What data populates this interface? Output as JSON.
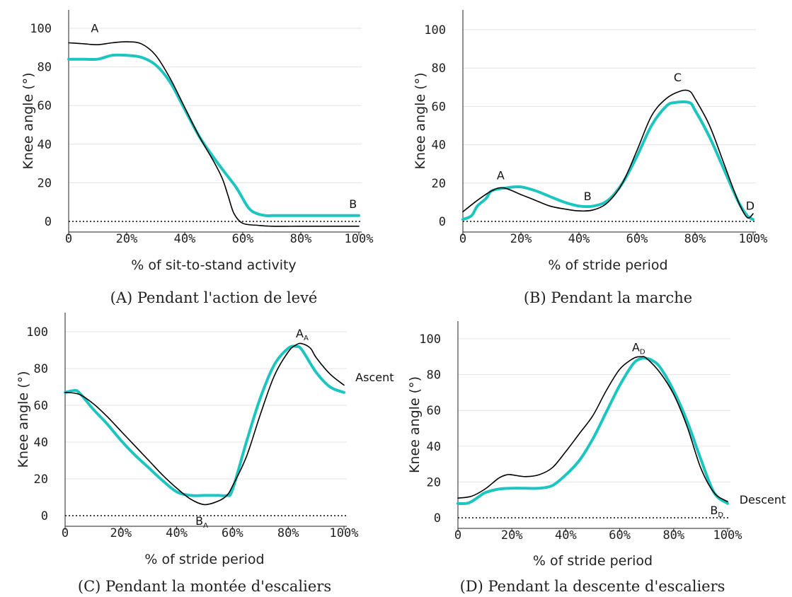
{
  "colors": {
    "measured": "#000000",
    "estimated": "#1cc5c0"
  },
  "chart_data": [
    {
      "type": "line",
      "caption": "(A) Pendant l'action de levé",
      "xlabel": "% of sit-to-stand activity",
      "ylabel": "Knee angle (°)",
      "xlim": [
        0,
        100
      ],
      "ylim": [
        -5,
        110
      ],
      "x_ticks": [
        "0",
        "20%",
        "40%",
        "60%",
        "80%",
        "100%"
      ],
      "y_ticks": [
        "0",
        "20",
        "40",
        "60",
        "80",
        "100"
      ],
      "grid": true,
      "series": [
        {
          "x": [
            0,
            5,
            10,
            15,
            20,
            25,
            30,
            35,
            40,
            45,
            50,
            53,
            55,
            57,
            60,
            65,
            70,
            80,
            90,
            100
          ],
          "y": [
            92.5,
            92,
            91.5,
            92.5,
            93,
            92,
            86,
            74,
            59,
            44,
            31,
            22,
            13,
            4,
            -1,
            -2,
            -2.5,
            -2.5,
            -2.5,
            -2.5
          ]
        },
        {
          "x": [
            0,
            5,
            10,
            15,
            20,
            25,
            30,
            35,
            40,
            45,
            50,
            55,
            58,
            62,
            65,
            68,
            70,
            80,
            90,
            100
          ],
          "y": [
            84,
            84,
            84,
            86,
            86,
            85,
            81,
            72,
            58,
            44,
            33,
            23,
            17,
            7,
            4,
            3,
            3,
            3,
            3,
            3
          ]
        }
      ],
      "annotations": [
        {
          "text": "A",
          "sub": "",
          "x": 9,
          "y": 98
        },
        {
          "text": "B",
          "sub": "",
          "x": 98,
          "y": 7
        }
      ]
    },
    {
      "type": "line",
      "caption": "(B) Pendant la marche",
      "xlabel": "% of stride period",
      "ylabel": "Knee angle (°)",
      "xlim": [
        0,
        100
      ],
      "ylim": [
        -5,
        110
      ],
      "x_ticks": [
        "0",
        "20%",
        "40%",
        "60%",
        "80%",
        "100%"
      ],
      "y_ticks": [
        "0",
        "20",
        "40",
        "60",
        "80",
        "100"
      ],
      "grid": true,
      "series": [
        {
          "x": [
            0,
            5,
            10,
            14,
            20,
            25,
            30,
            35,
            40,
            45,
            50,
            55,
            60,
            65,
            70,
            75,
            78,
            80,
            85,
            90,
            95,
            98,
            100
          ],
          "y": [
            5,
            11,
            16,
            17.5,
            14,
            11,
            8,
            6.5,
            5.5,
            6,
            10,
            20,
            37,
            55,
            64,
            68,
            68,
            64,
            50,
            30,
            10,
            2,
            4
          ]
        },
        {
          "x": [
            0,
            3,
            5,
            8,
            10,
            15,
            20,
            25,
            30,
            35,
            40,
            45,
            50,
            55,
            60,
            65,
            70,
            73,
            78,
            80,
            85,
            90,
            95,
            98,
            100
          ],
          "y": [
            1,
            3,
            8,
            12,
            16,
            17.5,
            18,
            16,
            13,
            10,
            8,
            8,
            11,
            20,
            34,
            50,
            60,
            62,
            62,
            58,
            44,
            27,
            10,
            3,
            1
          ]
        }
      ],
      "annotations": [
        {
          "text": "A",
          "sub": "",
          "x": 13,
          "y": 22
        },
        {
          "text": "B",
          "sub": "",
          "x": 43,
          "y": 11
        },
        {
          "text": "C",
          "sub": "",
          "x": 74,
          "y": 73
        },
        {
          "text": "D",
          "sub": "",
          "x": 99,
          "y": 6
        }
      ]
    },
    {
      "type": "line",
      "caption": "(C) Pendant la montée d'escaliers",
      "xlabel": "% of stride period",
      "ylabel": "Knee angle (°)",
      "xlim": [
        0,
        100
      ],
      "ylim": [
        -5,
        110
      ],
      "x_ticks": [
        "0",
        "20%",
        "40%",
        "60%",
        "80%",
        "100%"
      ],
      "y_ticks": [
        "0",
        "20",
        "40",
        "60",
        "80",
        "100"
      ],
      "grid": true,
      "series": [
        {
          "x": [
            0,
            5,
            10,
            15,
            20,
            25,
            30,
            35,
            40,
            45,
            50,
            55,
            58,
            60,
            65,
            70,
            75,
            80,
            83,
            85,
            88,
            90,
            95,
            100
          ],
          "y": [
            67,
            66,
            61,
            54,
            46,
            38,
            30,
            22,
            15,
            9,
            6,
            8,
            11,
            16,
            32,
            55,
            76,
            89,
            93,
            93.5,
            91,
            86,
            77,
            71
          ]
        },
        {
          "x": [
            0,
            3,
            5,
            10,
            15,
            20,
            25,
            30,
            35,
            40,
            45,
            50,
            55,
            58,
            60,
            65,
            70,
            75,
            80,
            83,
            85,
            90,
            95,
            100
          ],
          "y": [
            67,
            68,
            67,
            58,
            50,
            41,
            33,
            26,
            19,
            13,
            11,
            11,
            11,
            11,
            14,
            40,
            64,
            82,
            91,
            92,
            90,
            78,
            70,
            67
          ]
        }
      ],
      "annotations": [
        {
          "text": "A",
          "sub": "A",
          "x": 85,
          "y": 97
        },
        {
          "text": "B",
          "sub": "A",
          "x": 49,
          "y": -5
        },
        {
          "text": "Ascent",
          "sub": "",
          "x": 111,
          "y": 73
        }
      ]
    },
    {
      "type": "line",
      "caption": "(D) Pendant la descente d'escaliers",
      "xlabel": "% of stride period",
      "ylabel": "Knee angle (°)",
      "xlim": [
        0,
        100
      ],
      "ylim": [
        -5,
        110
      ],
      "x_ticks": [
        "0",
        "20%",
        "40%",
        "60%",
        "80%",
        "100%"
      ],
      "y_ticks": [
        "0",
        "20",
        "40",
        "60",
        "80",
        "100"
      ],
      "grid": true,
      "series": [
        {
          "x": [
            0,
            5,
            10,
            15,
            18,
            20,
            25,
            30,
            35,
            40,
            45,
            50,
            55,
            60,
            65,
            68,
            70,
            75,
            80,
            85,
            90,
            95,
            100
          ],
          "y": [
            11,
            12,
            16,
            22,
            24,
            24,
            23,
            24,
            28,
            37,
            47,
            57,
            71,
            83,
            89,
            90,
            89,
            81,
            69,
            51,
            28,
            14,
            9
          ]
        },
        {
          "x": [
            0,
            3,
            5,
            8,
            10,
            15,
            20,
            25,
            30,
            35,
            40,
            45,
            50,
            55,
            60,
            65,
            68,
            70,
            72,
            75,
            80,
            85,
            90,
            95,
            100
          ],
          "y": [
            8,
            8,
            9,
            12,
            14,
            16,
            16.5,
            16.5,
            16.5,
            18,
            24,
            32,
            44,
            59,
            74,
            86,
            89,
            89,
            88,
            84,
            71,
            54,
            33,
            14,
            8
          ]
        }
      ],
      "annotations": [
        {
          "text": "A",
          "sub": "D",
          "x": 67,
          "y": 93
        },
        {
          "text": "B",
          "sub": "D",
          "x": 96,
          "y": 2
        },
        {
          "text": "Descent",
          "sub": "",
          "x": 113,
          "y": 8
        }
      ]
    }
  ]
}
